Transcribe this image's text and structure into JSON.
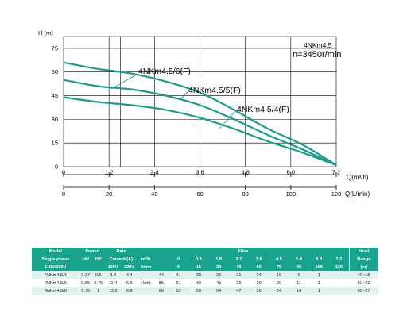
{
  "chart_data": {
    "type": "line",
    "title": "4NKm4.5",
    "subtitle": "n=3450r/min",
    "ylabel": "H (m)",
    "ylim": [
      0,
      82.5
    ],
    "yticks": [
      0,
      15,
      30,
      45,
      60,
      75
    ],
    "xaxis_primary": {
      "label": "Q(m³/h)",
      "ticks": [
        "0",
        "1.2",
        "2.4",
        "3.6",
        "4.8",
        "6.0",
        "7.2"
      ],
      "lim": [
        0,
        7.2
      ]
    },
    "xaxis_secondary": {
      "label": "Q(L/min)",
      "ticks": [
        "0",
        "20",
        "40",
        "60",
        "80",
        "100",
        "120"
      ],
      "lim": [
        0,
        120
      ]
    },
    "grid": true,
    "series": [
      {
        "name": "4NKm4.5/6(F)",
        "x": [
          0,
          0.9,
          1.8,
          2.7,
          3.6,
          4.5,
          5.4,
          6.3,
          7.2
        ],
        "y": [
          66,
          62,
          59,
          54,
          47,
          36,
          24,
          14,
          1
        ]
      },
      {
        "name": "4NKm4.5/5(F)",
        "x": [
          0,
          0.9,
          1.8,
          2.7,
          3.6,
          4.5,
          5.4,
          6.3,
          7.2
        ],
        "y": [
          55,
          51,
          49,
          45,
          39,
          30,
          20,
          11,
          1
        ]
      },
      {
        "name": "4NKm4.5/4(F)",
        "x": [
          0,
          0.9,
          1.8,
          2.7,
          3.6,
          4.5,
          5.4,
          6.3,
          7.2
        ],
        "y": [
          44,
          41,
          39,
          36,
          31,
          24,
          16,
          9,
          1
        ]
      }
    ]
  },
  "colors": {
    "curve": "#1b9b8a",
    "table_header": "#18a38e",
    "table_row_alt": "#e2f2ee"
  },
  "table": {
    "headers": {
      "model": "Model",
      "power": "Power",
      "rate_current_1": "Rate",
      "rate_current_2": "Current (A)",
      "flow": "Flow",
      "head_range_1": "Head",
      "head_range_2": "Range",
      "head_range_3": "(m)",
      "single_phase": "Single-phase",
      "voltage": "110V/220V",
      "kw": "kW",
      "hp": "HP",
      "v110": "110V",
      "v220": "220V",
      "m3h": "m³/h",
      "lmin": "l/min",
      "hm": "H(m)"
    },
    "flow_m3h": [
      "0",
      "0.9",
      "1.8",
      "2.7",
      "3.6",
      "4.5",
      "5.4",
      "6.3",
      "7.2"
    ],
    "flow_lmin": [
      "0",
      "15",
      "30",
      "45",
      "60",
      "75",
      "90",
      "105",
      "120"
    ],
    "rows": [
      {
        "model": "4NKm4.5/4",
        "kw": "0.37",
        "hp": "0.5",
        "a110": "9.9",
        "a220": "4.4",
        "head": [
          "44",
          "41",
          "39",
          "36",
          "31",
          "24",
          "16",
          "9",
          "1"
        ],
        "range": "40~18"
      },
      {
        "model": "4NKm4.5/5",
        "kw": "0.55",
        "hp": "0.75",
        "a110": "11.4",
        "a220": "5.6",
        "head": [
          "55",
          "51",
          "49",
          "45",
          "39",
          "30",
          "20",
          "11",
          "1"
        ],
        "range": "50~22"
      },
      {
        "model": "4NKm4.5/6",
        "kw": "0.75",
        "hp": "1",
        "a110": "13.2",
        "a220": "6.8",
        "head": [
          "66",
          "62",
          "59",
          "54",
          "47",
          "36",
          "24",
          "14",
          "1"
        ],
        "range": "60~27"
      }
    ]
  }
}
